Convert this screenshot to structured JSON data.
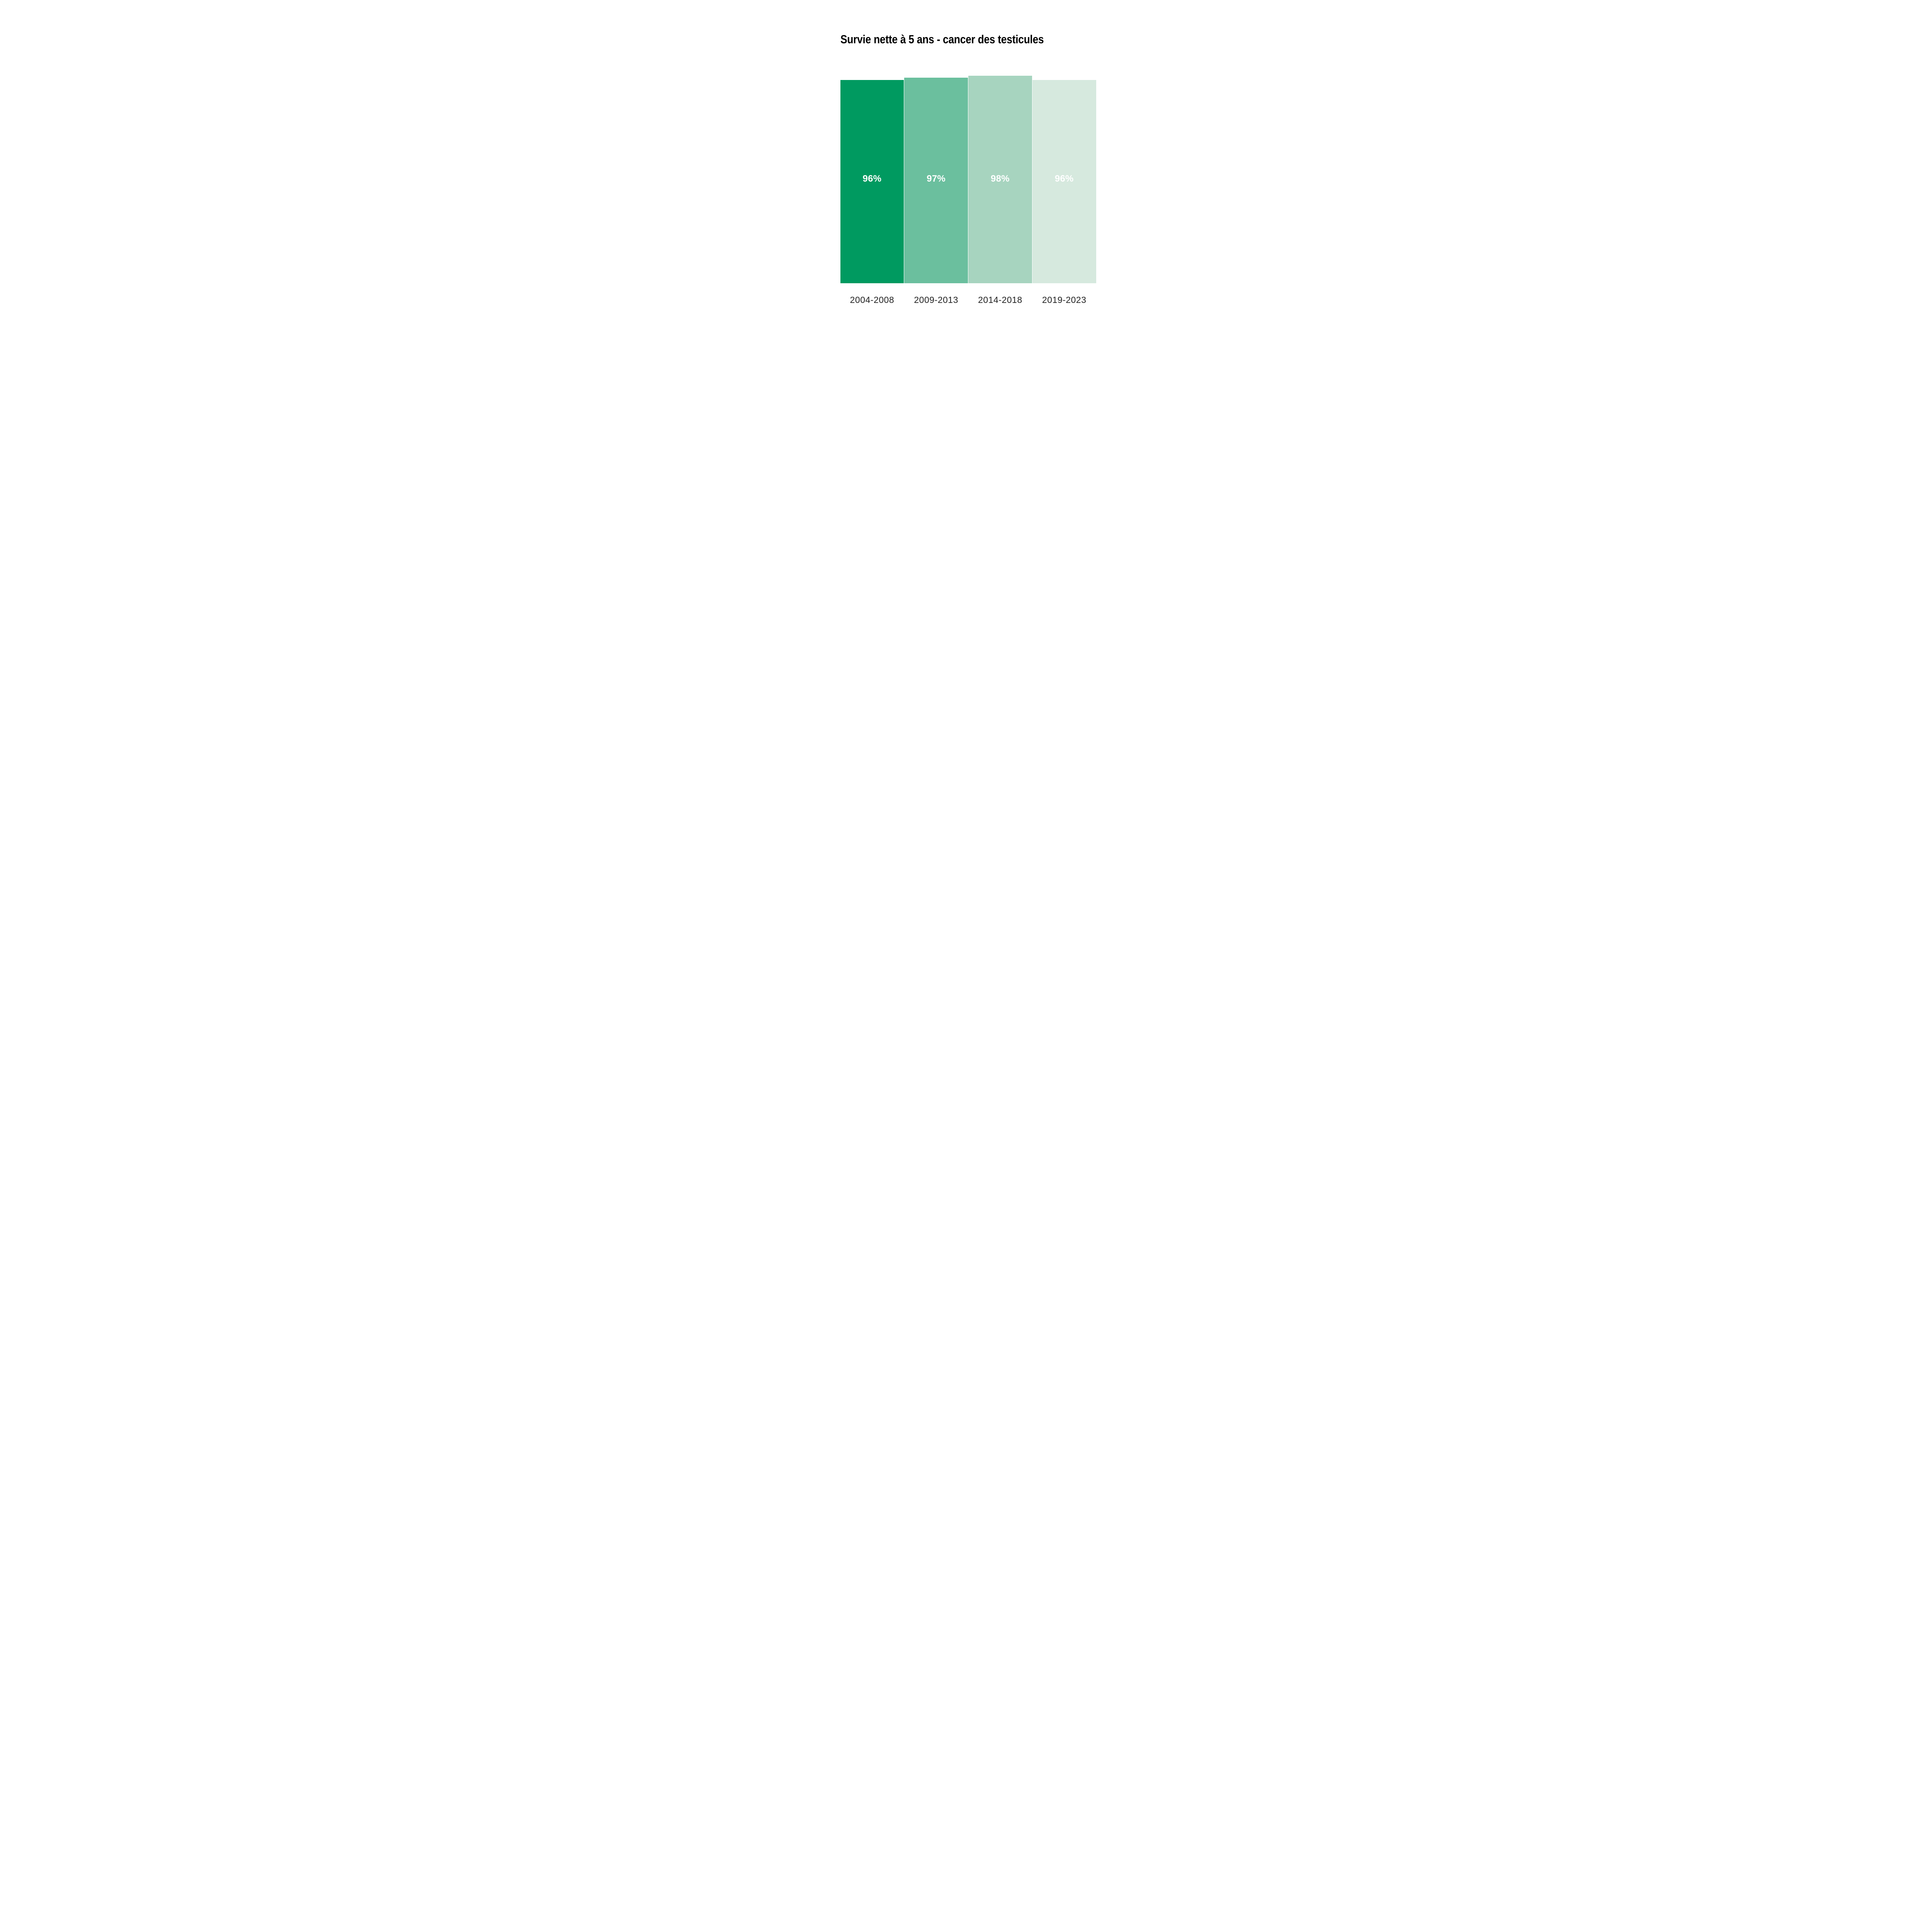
{
  "title": "Survie nette à 5 ans - cancer des testicules",
  "colors": {
    "background": "#ffffff",
    "title_text": "#000000",
    "axis_label_text": "#222222",
    "value_label_text": "#ffffff",
    "bar_gap": "#ffffff"
  },
  "chart_data": {
    "type": "bar",
    "title": "Survie nette à 5 ans - cancer des testicules",
    "categories": [
      "2004-2008",
      "2009-2013",
      "2014-2018",
      "2019-2023"
    ],
    "values": [
      96,
      97,
      98,
      96
    ],
    "value_labels": [
      "96%",
      "97%",
      "98%",
      "96%"
    ],
    "bar_colors": [
      "#009A60",
      "#6BBF9E",
      "#A7D4BF",
      "#D6E9DE"
    ],
    "xlabel": "",
    "ylabel": "",
    "ylim": [
      0,
      100
    ],
    "grid": "off",
    "legend": "none",
    "value_label_position": "inside-bars",
    "bars_share_baseline": true
  }
}
